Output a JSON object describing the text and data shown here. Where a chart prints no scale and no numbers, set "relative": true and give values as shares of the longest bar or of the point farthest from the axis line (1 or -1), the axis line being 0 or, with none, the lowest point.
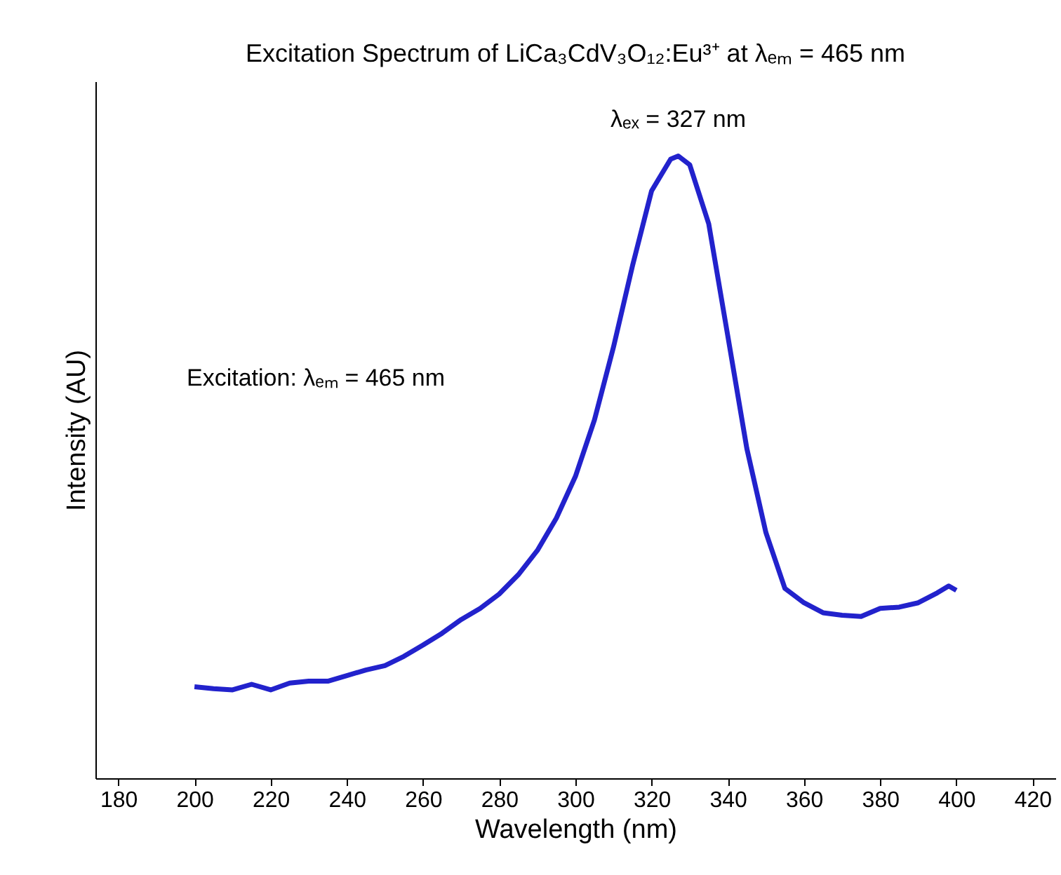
{
  "chart_data": {
    "type": "line",
    "title": "Excitation Spectrum of LiCa₃CdV₃O₁₂:Eu³⁺ at λₑₘ = 465 nm",
    "xlabel": "Wavelength (nm)",
    "ylabel": "Intensity (AU)",
    "relative": true,
    "x": [
      200,
      205,
      210,
      215,
      220,
      225,
      230,
      235,
      240,
      245,
      250,
      255,
      260,
      265,
      270,
      275,
      280,
      285,
      290,
      295,
      300,
      305,
      310,
      315,
      320,
      325,
      327,
      330,
      335,
      340,
      345,
      350,
      355,
      360,
      365,
      370,
      375,
      380,
      385,
      390,
      395,
      398,
      400
    ],
    "series": [
      {
        "color": "#2222cc",
        "values": [
          0.147,
          0.144,
          0.142,
          0.151,
          0.142,
          0.153,
          0.156,
          0.156,
          0.165,
          0.174,
          0.181,
          0.196,
          0.214,
          0.233,
          0.255,
          0.273,
          0.296,
          0.327,
          0.366,
          0.418,
          0.485,
          0.576,
          0.693,
          0.824,
          0.944,
          0.995,
          1,
          0.986,
          0.891,
          0.711,
          0.53,
          0.395,
          0.305,
          0.282,
          0.266,
          0.262,
          0.26,
          0.273,
          0.275,
          0.282,
          0.298,
          0.309,
          0.302
        ]
      }
    ],
    "xlim": [
      174,
      426
    ],
    "xticks": [
      180,
      200,
      220,
      240,
      260,
      280,
      300,
      320,
      340,
      360,
      380,
      400,
      420
    ],
    "annotations": [
      {
        "text": "λₑₓ = 327 nm",
        "x": 327,
        "y": 1
      },
      "Excitation: λₑₘ = 465 nm"
    ]
  }
}
